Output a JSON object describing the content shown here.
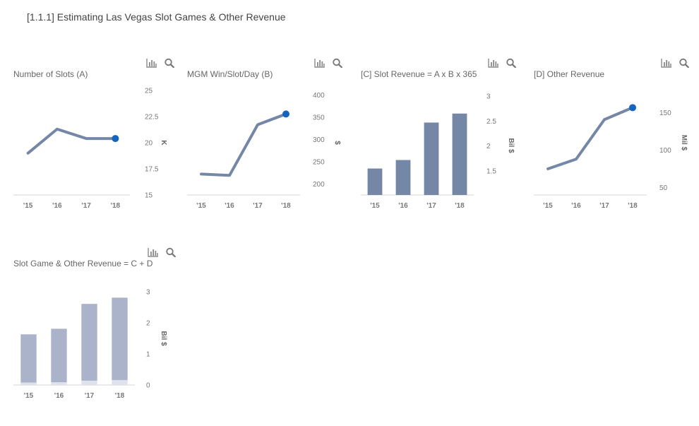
{
  "page": {
    "title": "[1.1.1] Estimating Las Vegas Slot Games & Other Revenue"
  },
  "colors": {
    "series": "#7587a6",
    "marker": "#1565c0",
    "bar_light": "#aab3c9",
    "bar_base": "#dde2ec",
    "axis": "#d5d5d5",
    "tick_text": "#777777"
  },
  "icons": [
    "bar-chart-icon",
    "search-icon"
  ],
  "chart_data": [
    {
      "type": "line",
      "title": "Number of Slots (A)",
      "categories": [
        "'15",
        "'16",
        "'17",
        "'18"
      ],
      "values": [
        19.0,
        21.3,
        20.4,
        20.4
      ],
      "ylim": [
        15,
        25
      ],
      "yticks": [
        "25",
        "22.5",
        "20",
        "17.5",
        "15"
      ],
      "ylabel": "K",
      "grid": false
    },
    {
      "type": "line",
      "title": "MGM Win/Slot/Day (B)",
      "categories": [
        "'15",
        "'16",
        "'17",
        "'18"
      ],
      "values": [
        222,
        219,
        333,
        357
      ],
      "ylim": [
        175,
        410
      ],
      "yticks": [
        "400",
        "350",
        "300",
        "250",
        "200"
      ],
      "ylabel": "$",
      "grid": false
    },
    {
      "type": "bar",
      "title": "[C] Slot Revenue = A x B x 365",
      "categories": [
        "'15",
        "'16",
        "'17",
        "'18"
      ],
      "values": [
        1.55,
        1.72,
        2.47,
        2.65
      ],
      "ylim": [
        1.02,
        3.0
      ],
      "yticks": [
        "3",
        "2.5",
        "2",
        "1.5"
      ],
      "ylabel": "Bil $",
      "grid": false
    },
    {
      "type": "line",
      "title": "[D] Other Revenue",
      "categories": [
        "'15",
        "'16",
        "'17",
        "'18"
      ],
      "values": [
        75,
        88,
        141,
        157
      ],
      "ylim": [
        40,
        180
      ],
      "yticks": [
        "150",
        "100",
        "50"
      ],
      "ylabel": "Mil $",
      "grid": false
    },
    {
      "type": "bar",
      "title": "Slot Game & Other Revenue = C + D",
      "stacked": true,
      "categories": [
        "'15",
        "'16",
        "'17",
        "'18"
      ],
      "series": [
        {
          "values": [
            0.08,
            0.09,
            0.14,
            0.16
          ]
        },
        {
          "values": [
            1.55,
            1.72,
            2.47,
            2.65
          ]
        }
      ],
      "ylim": [
        0,
        3
      ],
      "yticks": [
        "3",
        "2",
        "1",
        "0"
      ],
      "ylabel": "Bil $",
      "grid": false
    }
  ]
}
